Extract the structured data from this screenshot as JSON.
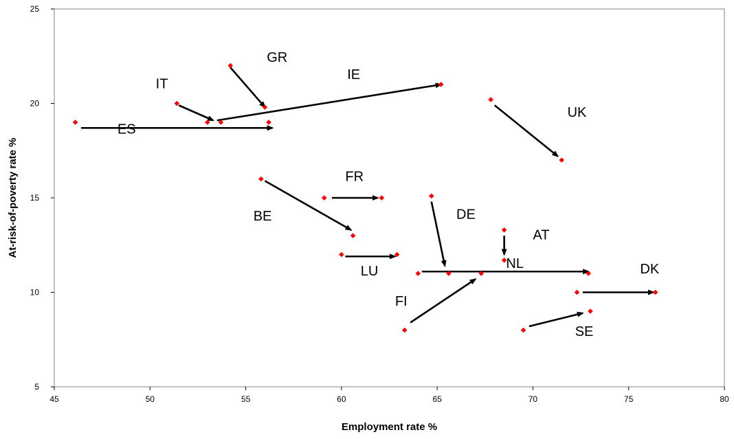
{
  "chart_data": {
    "type": "scatter",
    "title": "",
    "xlabel": "Employment rate %",
    "ylabel": "At-risk-of-poverty rate %",
    "xlim": [
      45,
      80
    ],
    "ylim": [
      5,
      25
    ],
    "xticks": [
      "45",
      "50",
      "55",
      "60",
      "65",
      "70",
      "75",
      "80"
    ],
    "yticks": [
      "5",
      "10",
      "15",
      "20",
      "25"
    ],
    "grid": false,
    "legend": "none",
    "colors": {
      "point": "#ff0000",
      "arrow": "#000000",
      "axis": "#808080"
    },
    "series": [
      {
        "name": "ES",
        "from": [
          46.1,
          19.0
        ],
        "to": [
          56.2,
          19.0
        ],
        "arrow": [
          [
            46.4,
            18.7
          ],
          [
            56.4,
            18.7
          ]
        ],
        "label_at": [
          48.3,
          18.4
        ]
      },
      {
        "name": "IT",
        "from": [
          51.4,
          20.0
        ],
        "to": [
          53.0,
          19.0
        ],
        "arrow": [
          [
            51.5,
            19.9
          ],
          [
            53.3,
            19.1
          ]
        ],
        "label_at": [
          50.3,
          20.8
        ]
      },
      {
        "name": "GR",
        "from": [
          54.2,
          22.0
        ],
        "to": [
          56.0,
          19.8
        ],
        "arrow": [
          [
            54.2,
            21.9
          ],
          [
            56.0,
            19.8
          ]
        ],
        "label_at": [
          56.1,
          22.2
        ]
      },
      {
        "name": "IE",
        "from": [
          53.7,
          19.0
        ],
        "to": [
          65.2,
          21.0
        ],
        "arrow": [
          [
            53.5,
            19.1
          ],
          [
            65.2,
            21.0
          ]
        ],
        "label_at": [
          60.3,
          21.3
        ]
      },
      {
        "name": "UK",
        "from": [
          67.8,
          20.2
        ],
        "to": [
          71.5,
          17.0
        ],
        "arrow": [
          [
            68.0,
            19.9
          ],
          [
            71.3,
            17.2
          ]
        ],
        "label_at": [
          71.8,
          19.3
        ]
      },
      {
        "name": "FR",
        "from": [
          59.1,
          15.0
        ],
        "to": [
          62.1,
          15.0
        ],
        "arrow": [
          [
            59.5,
            15.0
          ],
          [
            61.9,
            15.0
          ]
        ],
        "label_at": [
          60.2,
          15.9
        ]
      },
      {
        "name": "BE",
        "from": [
          55.8,
          16.0
        ],
        "to": [
          60.6,
          13.0
        ],
        "arrow": [
          [
            56.0,
            15.9
          ],
          [
            60.5,
            13.3
          ]
        ],
        "label_at": [
          55.4,
          13.8
        ]
      },
      {
        "name": "LU",
        "from": [
          60.0,
          12.0
        ],
        "to": [
          62.9,
          12.0
        ],
        "arrow": [
          [
            60.2,
            11.9
          ],
          [
            62.8,
            11.9
          ]
        ],
        "label_at": [
          61.0,
          10.9
        ]
      },
      {
        "name": "DE",
        "from": [
          64.7,
          15.1
        ],
        "to": [
          65.6,
          11.0
        ],
        "arrow": [
          [
            64.7,
            14.8
          ],
          [
            65.4,
            11.4
          ]
        ],
        "label_at": [
          66.0,
          13.9
        ]
      },
      {
        "name": "AT",
        "from": [
          68.5,
          13.3
        ],
        "to": [
          68.5,
          11.7
        ],
        "arrow": [
          [
            68.5,
            13.0
          ],
          [
            68.5,
            12.0
          ]
        ],
        "label_at": [
          70.0,
          12.8
        ]
      },
      {
        "name": "NL",
        "from": [
          64.0,
          11.0
        ],
        "to": [
          72.9,
          11.0
        ],
        "arrow": [
          [
            64.2,
            11.1
          ],
          [
            72.9,
            11.1
          ]
        ],
        "label_at": [
          68.6,
          11.3
        ]
      },
      {
        "name": "DK",
        "from": [
          72.3,
          10.0
        ],
        "to": [
          76.4,
          10.0
        ],
        "arrow": [
          [
            72.6,
            10.0
          ],
          [
            76.3,
            10.0
          ]
        ],
        "label_at": [
          75.6,
          11.0
        ]
      },
      {
        "name": "FI",
        "from": [
          63.3,
          8.0
        ],
        "to": [
          67.3,
          11.0
        ],
        "arrow": [
          [
            63.6,
            8.4
          ],
          [
            67.0,
            10.7
          ]
        ],
        "label_at": [
          62.8,
          9.3
        ]
      },
      {
        "name": "SE",
        "from": [
          69.5,
          8.0
        ],
        "to": [
          73.0,
          9.0
        ],
        "arrow": [
          [
            69.8,
            8.2
          ],
          [
            72.6,
            8.9
          ]
        ],
        "label_at": [
          72.2,
          7.7
        ]
      }
    ]
  }
}
